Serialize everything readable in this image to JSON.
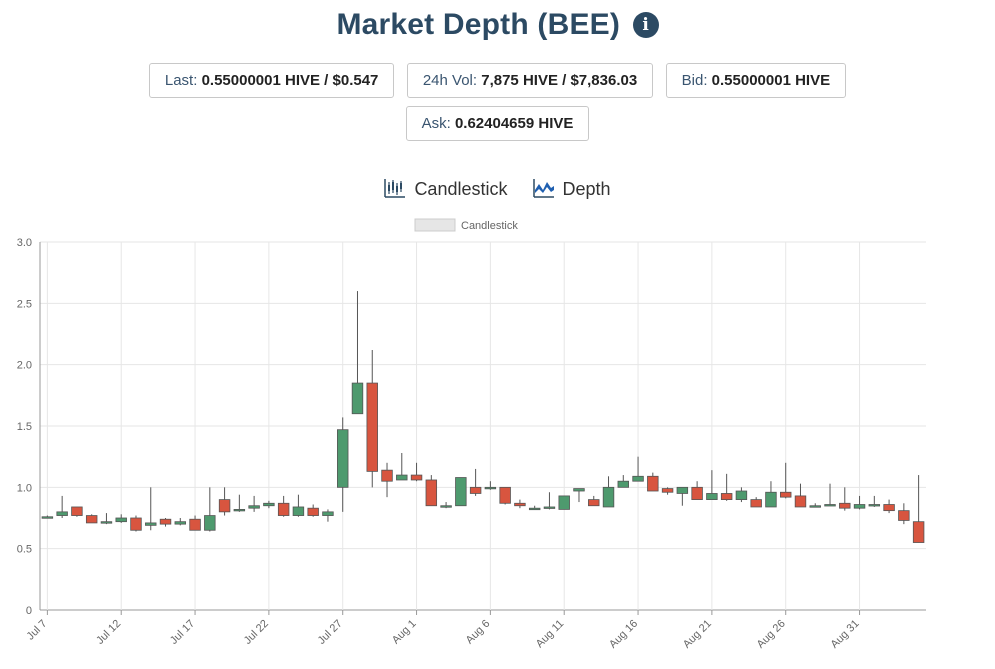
{
  "header": {
    "title": "Market Depth (BEE)",
    "info_icon": "info-circle-icon"
  },
  "stats": {
    "last_label": "Last:",
    "last_value": "0.55000001 HIVE / $0.547",
    "vol_label": "24h Vol:",
    "vol_value": "7,875 HIVE / $7,836.03",
    "bid_label": "Bid:",
    "bid_value": "0.55000001 HIVE",
    "ask_label": "Ask:",
    "ask_value": "0.62404659 HIVE"
  },
  "tabs": {
    "candlestick": "Candlestick",
    "depth": "Depth"
  },
  "colors": {
    "up": "#4e9a6e",
    "down": "#d8553f",
    "wick": "#555555",
    "grid": "#e6e6e6",
    "accent": "#2c4a63"
  },
  "chart_data": {
    "type": "candlestick",
    "legend": [
      "Candlestick"
    ],
    "ylim": [
      0,
      3.0
    ],
    "yticks": [
      "0",
      "0.5",
      "1.0",
      "1.5",
      "2.0",
      "2.5",
      "3.0"
    ],
    "xlabels": [
      "Jul 7",
      "Jul 12",
      "Jul 17",
      "Jul 22",
      "Jul 27",
      "Aug 1",
      "Aug 6",
      "Aug 11",
      "Aug 16",
      "Aug 21",
      "Aug 26",
      "Aug 31"
    ],
    "x": [
      "Jul 7",
      "Jul 8",
      "Jul 9",
      "Jul 10",
      "Jul 11",
      "Jul 12",
      "Jul 13",
      "Jul 14",
      "Jul 15",
      "Jul 16",
      "Jul 17",
      "Jul 18",
      "Jul 19",
      "Jul 20",
      "Jul 21",
      "Jul 22",
      "Jul 23",
      "Jul 24",
      "Jul 25",
      "Jul 26",
      "Jul 27",
      "Jul 28",
      "Jul 29",
      "Jul 30",
      "Jul 31",
      "Aug 1",
      "Aug 2",
      "Aug 3",
      "Aug 4",
      "Aug 5",
      "Aug 6",
      "Aug 7",
      "Aug 8",
      "Aug 9",
      "Aug 10",
      "Aug 11",
      "Aug 12",
      "Aug 13",
      "Aug 14",
      "Aug 15",
      "Aug 16",
      "Aug 17",
      "Aug 18",
      "Aug 19",
      "Aug 20",
      "Aug 21",
      "Aug 22",
      "Aug 23",
      "Aug 24",
      "Aug 25",
      "Aug 26",
      "Aug 27",
      "Aug 28",
      "Aug 29",
      "Aug 30",
      "Aug 31",
      "Sep 1",
      "Sep 2",
      "Sep 3",
      "Sep 4"
    ],
    "ohlc": [
      [
        0.76,
        0.77,
        0.75,
        0.76
      ],
      [
        0.77,
        0.93,
        0.75,
        0.8
      ],
      [
        0.84,
        0.84,
        0.76,
        0.77
      ],
      [
        0.77,
        0.78,
        0.71,
        0.71
      ],
      [
        0.72,
        0.79,
        0.7,
        0.72
      ],
      [
        0.72,
        0.78,
        0.71,
        0.75
      ],
      [
        0.75,
        0.77,
        0.64,
        0.65
      ],
      [
        0.69,
        1.0,
        0.65,
        0.71
      ],
      [
        0.74,
        0.75,
        0.68,
        0.7
      ],
      [
        0.7,
        0.75,
        0.69,
        0.72
      ],
      [
        0.74,
        0.77,
        0.65,
        0.65
      ],
      [
        0.65,
        1.0,
        0.64,
        0.77
      ],
      [
        0.9,
        1.0,
        0.77,
        0.8
      ],
      [
        0.81,
        0.94,
        0.8,
        0.82
      ],
      [
        0.83,
        0.93,
        0.8,
        0.85
      ],
      [
        0.85,
        0.89,
        0.83,
        0.87
      ],
      [
        0.87,
        0.93,
        0.76,
        0.77
      ],
      [
        0.77,
        0.94,
        0.76,
        0.84
      ],
      [
        0.83,
        0.86,
        0.76,
        0.77
      ],
      [
        0.77,
        0.82,
        0.72,
        0.8
      ],
      [
        1.0,
        1.57,
        0.8,
        1.47
      ],
      [
        1.6,
        2.6,
        1.6,
        1.85
      ],
      [
        1.85,
        2.12,
        1.0,
        1.13
      ],
      [
        1.14,
        1.2,
        0.92,
        1.05
      ],
      [
        1.06,
        1.28,
        1.06,
        1.1
      ],
      [
        1.1,
        1.2,
        1.05,
        1.06
      ],
      [
        1.06,
        1.1,
        0.85,
        0.85
      ],
      [
        0.85,
        0.88,
        0.83,
        0.85
      ],
      [
        0.85,
        1.08,
        0.85,
        1.08
      ],
      [
        1.0,
        1.15,
        0.93,
        0.95
      ],
      [
        0.99,
        1.05,
        0.98,
        1.0
      ],
      [
        1.0,
        1.0,
        0.86,
        0.87
      ],
      [
        0.87,
        0.9,
        0.83,
        0.85
      ],
      [
        0.83,
        0.85,
        0.82,
        0.83
      ],
      [
        0.83,
        0.96,
        0.82,
        0.84
      ],
      [
        0.82,
        0.93,
        0.82,
        0.93
      ],
      [
        0.97,
        0.99,
        0.88,
        0.99
      ],
      [
        0.9,
        0.93,
        0.85,
        0.85
      ],
      [
        0.84,
        1.09,
        0.84,
        1.0
      ],
      [
        1.0,
        1.1,
        1.0,
        1.05
      ],
      [
        1.05,
        1.25,
        1.05,
        1.09
      ],
      [
        1.09,
        1.12,
        0.97,
        0.97
      ],
      [
        0.99,
        1.0,
        0.94,
        0.96
      ],
      [
        0.95,
        1.0,
        0.85,
        1.0
      ],
      [
        1.0,
        1.05,
        0.9,
        0.9
      ],
      [
        0.9,
        1.14,
        0.9,
        0.95
      ],
      [
        0.95,
        1.11,
        0.89,
        0.9
      ],
      [
        0.9,
        1.0,
        0.88,
        0.97
      ],
      [
        0.9,
        0.92,
        0.84,
        0.84
      ],
      [
        0.84,
        1.05,
        0.84,
        0.96
      ],
      [
        0.96,
        1.2,
        0.91,
        0.92
      ],
      [
        0.93,
        1.03,
        0.84,
        0.84
      ],
      [
        0.85,
        0.87,
        0.84,
        0.85
      ],
      [
        0.85,
        1.03,
        0.85,
        0.86
      ],
      [
        0.87,
        1.0,
        0.81,
        0.83
      ],
      [
        0.83,
        0.93,
        0.82,
        0.86
      ],
      [
        0.86,
        0.93,
        0.84,
        0.86
      ],
      [
        0.86,
        0.9,
        0.79,
        0.81
      ],
      [
        0.81,
        0.87,
        0.7,
        0.73
      ],
      [
        0.72,
        1.1,
        0.55,
        0.55
      ]
    ]
  }
}
